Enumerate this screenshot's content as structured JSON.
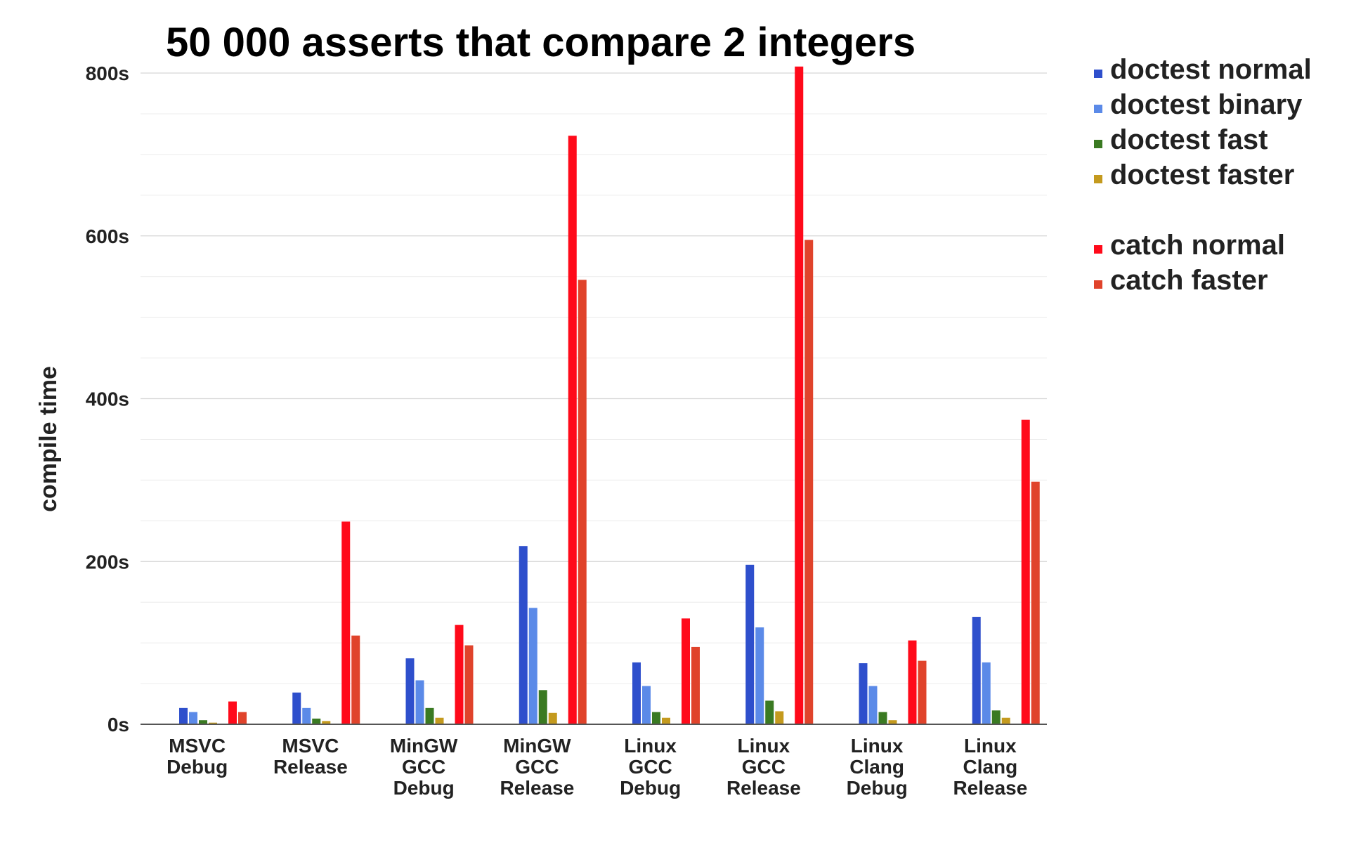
{
  "chart_data": {
    "type": "bar",
    "title": "50 000 asserts that compare 2 integers",
    "xlabel": "",
    "ylabel": "compile time",
    "ylim": [
      0,
      800
    ],
    "yticks": [
      0,
      200,
      400,
      600,
      800
    ],
    "ytick_labels": [
      "0s",
      "200s",
      "400s",
      "600s",
      "800s"
    ],
    "grid": true,
    "legend_position": "top-right",
    "categories": [
      [
        "MSVC",
        "Debug"
      ],
      [
        "MSVC",
        "Release"
      ],
      [
        "MinGW",
        "GCC",
        "Debug"
      ],
      [
        "MinGW",
        "GCC",
        "Release"
      ],
      [
        "Linux",
        "GCC",
        "Debug"
      ],
      [
        "Linux",
        "GCC",
        "Release"
      ],
      [
        "Linux",
        "Clang",
        "Debug"
      ],
      [
        "Linux",
        "Clang",
        "Release"
      ]
    ],
    "series": [
      {
        "name": "doctest normal",
        "color": "#2e4fcc",
        "values": [
          20,
          39,
          81,
          219,
          76,
          196,
          75,
          132
        ]
      },
      {
        "name": "doctest binary",
        "color": "#5b8ae8",
        "values": [
          15,
          20,
          54,
          143,
          47,
          119,
          47,
          76
        ]
      },
      {
        "name": "doctest fast",
        "color": "#3a7a22",
        "values": [
          5,
          7,
          20,
          42,
          15,
          29,
          15,
          17
        ]
      },
      {
        "name": "doctest faster",
        "color": "#c49a1e",
        "values": [
          2,
          4,
          8,
          14,
          8,
          16,
          5,
          8
        ]
      },
      {
        "name": "catch normal",
        "color": "#ff0a1a",
        "values": [
          28,
          249,
          122,
          723,
          130,
          808,
          103,
          374
        ]
      },
      {
        "name": "catch faster",
        "color": "#e0432b",
        "values": [
          15,
          109,
          97,
          546,
          95,
          595,
          78,
          298
        ]
      }
    ]
  }
}
